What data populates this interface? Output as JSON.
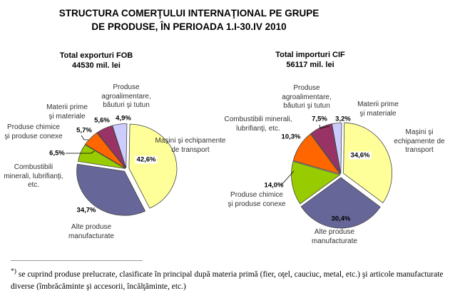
{
  "title": [
    "STRUCTURA COMERŢULUI INTERNAŢIONAL PE GRUPE",
    "DE PRODUSE, ÎN PERIOADA 1.I-30.IV 2010"
  ],
  "chart_data": [
    {
      "type": "pie",
      "title": [
        "Total exporturi FOB",
        "44530 mil. lei"
      ],
      "slices": [
        {
          "label": "Maşini şi echipamente\nde transport",
          "value": 42.6,
          "pct": "42,6%",
          "color": "#FFFF99"
        },
        {
          "label": "Alte produse\nmanufacturate",
          "value": 34.7,
          "pct": "34,7%",
          "color": "#666699"
        },
        {
          "label": "Combustibili\nminerali, lubrifianţi,\netc.",
          "value": 6.5,
          "pct": "6,5%",
          "color": "#99CC00"
        },
        {
          "label": "Produse chimice\nşi produse conexe",
          "value": 5.7,
          "pct": "5,7%",
          "color": "#FF6600"
        },
        {
          "label": "Materii prime\nşi materiale",
          "value": 5.6,
          "pct": "5,6%",
          "color": "#993366"
        },
        {
          "label": "Produse\nagroalimentare,\nbăuturi şi tutun",
          "value": 4.9,
          "pct": "4,9%",
          "color": "#CCCCFF"
        }
      ]
    },
    {
      "type": "pie",
      "title": [
        "Total importuri  CIF",
        "56117 mil. lei"
      ],
      "slices": [
        {
          "label": "Maşini şi\nechipamente de\ntransport",
          "value": 34.6,
          "pct": "34,6%",
          "color": "#FFFF99"
        },
        {
          "label": "Alte produse\nmanufacturate",
          "value": 30.4,
          "pct": "30,4%",
          "color": "#666699"
        },
        {
          "label": "Produse chimice\nşi produse conexe",
          "value": 14.0,
          "pct": "14,0%",
          "color": "#99CC00"
        },
        {
          "label": "Combustibili minerali,\nlubrifianţi, etc.",
          "value": 10.3,
          "pct": "10,3%",
          "color": "#FF6600"
        },
        {
          "label": "Produse\nagroalimentare,\nbăuturi şi tutun",
          "value": 7.5,
          "pct": "7,5%",
          "color": "#993366"
        },
        {
          "label": "Materii prime\nşi materiale",
          "value": 3.2,
          "pct": "3,2%",
          "color": "#CCCCFF"
        }
      ]
    }
  ],
  "footnote": {
    "marker": "*)",
    "text": " se cuprind produse prelucrate, clasificate în principal după materia primă (fier, oţel, cauciuc, metal, etc.) şi articole manufacturate diverse (îmbrăcăminte şi accesorii, încălţăminte, etc.)"
  }
}
